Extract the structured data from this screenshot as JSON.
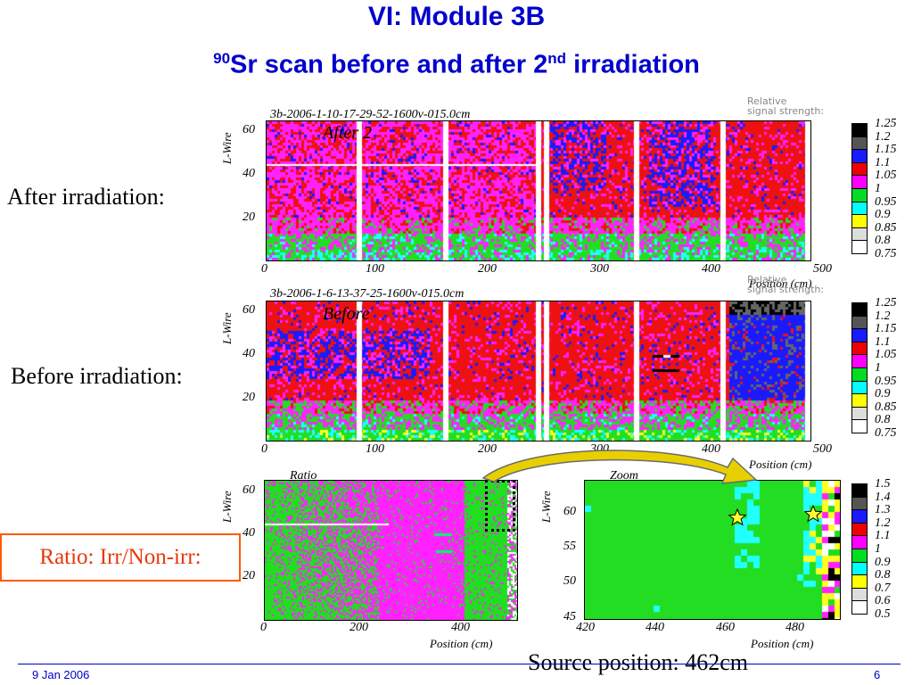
{
  "slide": {
    "title": "VI: Module 3B",
    "subtitle_sup1": "90",
    "subtitle_main": "Sr scan before and after 2",
    "subtitle_sup2": "nd",
    "subtitle_tail": " irradiation",
    "label_after": "After irradiation:",
    "label_before": "Before irradiation:",
    "label_ratio": "Ratio: Irr/Non-irr:",
    "source_position": "Source position: 462cm",
    "footer_date": "9 Jan 2006",
    "page_number": "6"
  },
  "colors": {
    "title": "#0000cc",
    "ratio_box_border": "#ff5a00",
    "ratio_box_text": "#e6380a",
    "arrow_fill": "#e8d000"
  },
  "plot_after": {
    "run_label": "3b-2006-1-10-17-29-52-1600v-015.0cm",
    "overlay_text": "After 2",
    "ylabel": "L-Wire",
    "xlabel": "Position (cm)",
    "x_ticks": [
      "0",
      "100",
      "200",
      "300",
      "400",
      "500"
    ],
    "y_ticks": [
      "60",
      "40",
      "20"
    ],
    "legend_title_1": "Relative",
    "legend_title_2": "signal strength:",
    "legend_values": [
      "1.25",
      "1.2",
      "1.15",
      "1.1",
      "1.05",
      "1",
      "0.95",
      "0.9",
      "0.85",
      "0.8",
      "0.75"
    ],
    "legend_colors": [
      "#000000",
      "#555555",
      "#1a1aff",
      "#ee0000",
      "#ff00ff",
      "#00dd22",
      "#00ffff",
      "#ffff00",
      "#dddddd",
      "#ffffff",
      "#ffffff"
    ]
  },
  "plot_before": {
    "run_label": "3b-2006-1-6-13-37-25-1600v-015.0cm",
    "overlay_text": "Before",
    "ylabel": "L-Wire",
    "xlabel": "Position (cm)",
    "x_ticks": [
      "0",
      "100",
      "200",
      "300",
      "400",
      "500"
    ],
    "y_ticks": [
      "60",
      "40",
      "20"
    ],
    "legend_title_1": "Relative",
    "legend_title_2": "signal strength:",
    "legend_values": [
      "1.25",
      "1.2",
      "1.15",
      "1.1",
      "1.05",
      "1",
      "0.95",
      "0.9",
      "0.85",
      "0.8",
      "0.75"
    ],
    "legend_colors": [
      "#000000",
      "#555555",
      "#1a1aff",
      "#ee0000",
      "#ff00ff",
      "#00dd22",
      "#00ffff",
      "#ffff00",
      "#dddddd",
      "#ffffff",
      "#ffffff"
    ]
  },
  "plot_ratio": {
    "title": "Ratio",
    "ylabel": "L-Wire",
    "xlabel": "Position (cm)",
    "x_ticks": [
      "0",
      "200",
      "400"
    ],
    "y_ticks": [
      "60",
      "40",
      "20"
    ]
  },
  "plot_zoom": {
    "title": "Zoom",
    "ylabel": "L-Wire",
    "xlabel": "Position (cm)",
    "x_ticks": [
      "420",
      "440",
      "460",
      "480"
    ],
    "y_ticks": [
      "60",
      "55",
      "50",
      "45"
    ],
    "legend_values": [
      "1.5",
      "1.4",
      "1.3",
      "1.2",
      "1.1",
      "1",
      "0.9",
      "0.8",
      "0.7",
      "0.6",
      "0.5"
    ],
    "legend_colors": [
      "#000000",
      "#555555",
      "#1a1aff",
      "#ee0000",
      "#ff00ff",
      "#00dd22",
      "#00ffff",
      "#ffff00",
      "#dddddd",
      "#ffffff",
      "#ffffff"
    ]
  }
}
